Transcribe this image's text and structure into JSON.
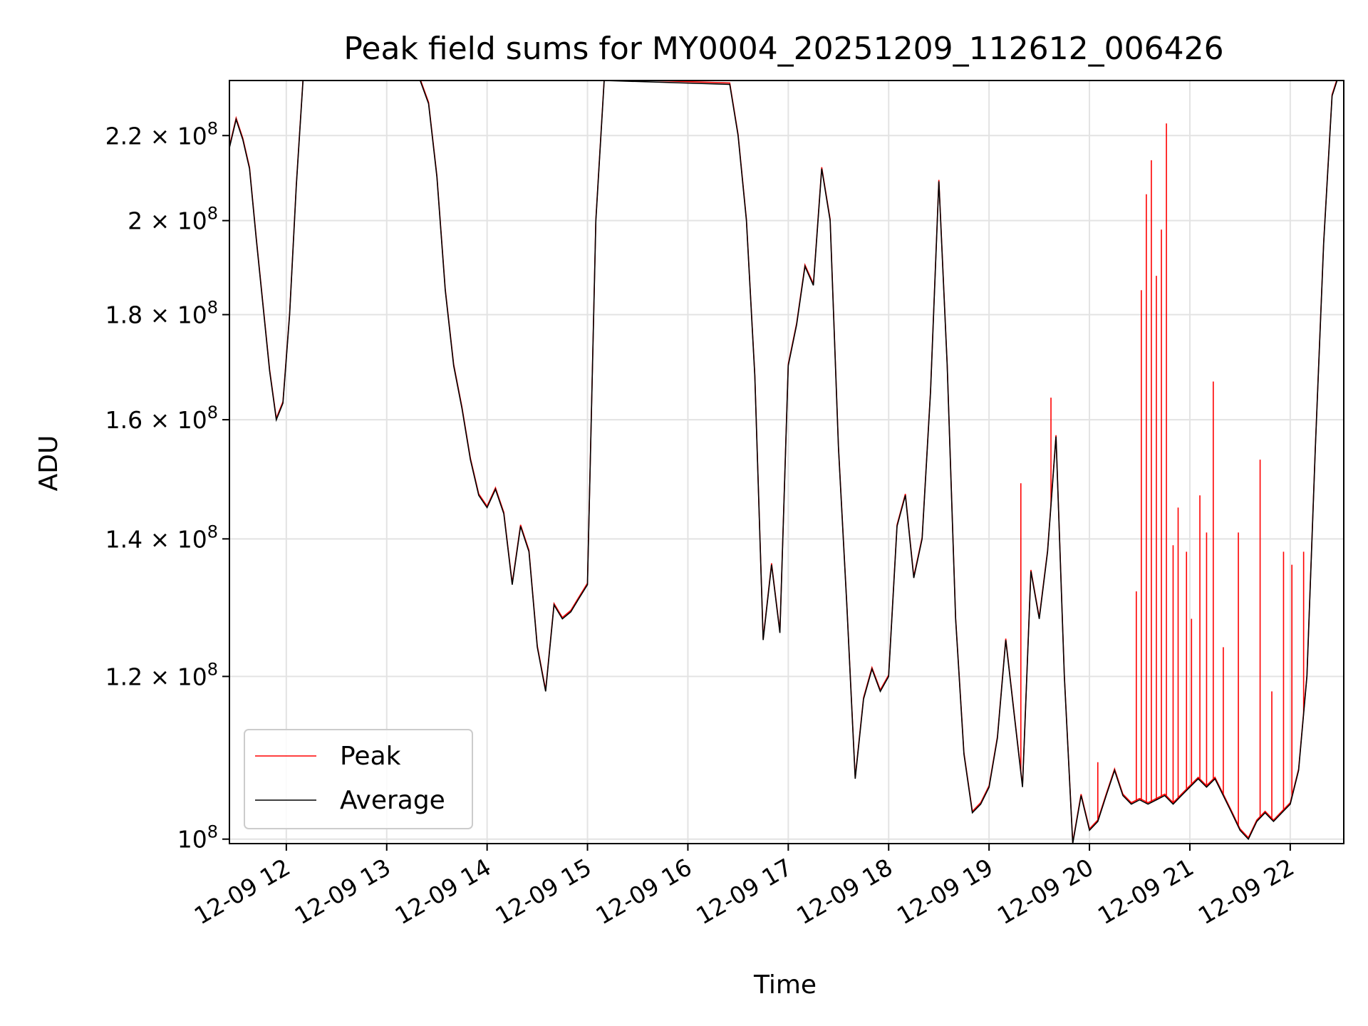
{
  "chart_data": {
    "type": "line",
    "title": "Peak field sums for MY0004_20251209_112612_006426",
    "xlabel": "Time",
    "ylabel": "ADU",
    "yscale": "log",
    "grid": true,
    "legend_placement": "lower-left",
    "x_range": [
      "2025-12-09 11:26",
      "2025-12-09 22:32"
    ],
    "ylim": [
      99500000,
      234000000
    ],
    "x_ticks": [
      {
        "t": "2025-12-09 12:00",
        "label": "12-09 12"
      },
      {
        "t": "2025-12-09 13:00",
        "label": "12-09 13"
      },
      {
        "t": "2025-12-09 14:00",
        "label": "12-09 14"
      },
      {
        "t": "2025-12-09 15:00",
        "label": "12-09 15"
      },
      {
        "t": "2025-12-09 16:00",
        "label": "12-09 16"
      },
      {
        "t": "2025-12-09 17:00",
        "label": "12-09 17"
      },
      {
        "t": "2025-12-09 18:00",
        "label": "12-09 18"
      },
      {
        "t": "2025-12-09 19:00",
        "label": "12-09 19"
      },
      {
        "t": "2025-12-09 20:00",
        "label": "12-09 20"
      },
      {
        "t": "2025-12-09 21:00",
        "label": "12-09 21"
      },
      {
        "t": "2025-12-09 22:00",
        "label": "12-09 22"
      }
    ],
    "y_ticks": [
      {
        "v": 100000000,
        "mant": "10",
        "exp": "8"
      },
      {
        "v": 120000000,
        "mant": "1.2 × 10",
        "exp": "8"
      },
      {
        "v": 140000000,
        "mant": "1.4 × 10",
        "exp": "8"
      },
      {
        "v": 160000000,
        "mant": "1.6 × 10",
        "exp": "8"
      },
      {
        "v": 180000000,
        "mant": "1.8 × 10",
        "exp": "8"
      },
      {
        "v": 200000000,
        "mant": "2 × 10",
        "exp": "8"
      },
      {
        "v": 220000000,
        "mant": "2.2 × 10",
        "exp": "8"
      }
    ],
    "series": [
      {
        "name": "Average",
        "color": "#000000",
        "points": [
          [
            "2025-12-09 11:26",
            217000000.0
          ],
          [
            "2025-12-09 11:30",
            224000000.0
          ],
          [
            "2025-12-09 11:34",
            219000000.0
          ],
          [
            "2025-12-09 11:38",
            212000000.0
          ],
          [
            "2025-12-09 11:42",
            196000000.0
          ],
          [
            "2025-12-09 11:46",
            182000000.0
          ],
          [
            "2025-12-09 11:50",
            169000000.0
          ],
          [
            "2025-12-09 11:54",
            160000000.0
          ],
          [
            "2025-12-09 11:58",
            163000000.0
          ],
          [
            "2025-12-09 12:02",
            180000000.0
          ],
          [
            "2025-12-09 12:06",
            208000000.0
          ],
          [
            "2025-12-09 12:10",
            234000000.0
          ],
          [
            "2025-12-09 13:20",
            234000000.0
          ],
          [
            "2025-12-09 13:25",
            228000000.0
          ],
          [
            "2025-12-09 13:30",
            210000000.0
          ],
          [
            "2025-12-09 13:35",
            185000000.0
          ],
          [
            "2025-12-09 13:40",
            170000000.0
          ],
          [
            "2025-12-09 13:45",
            162000000.0
          ],
          [
            "2025-12-09 13:50",
            153000000.0
          ],
          [
            "2025-12-09 13:55",
            147000000.0
          ],
          [
            "2025-12-09 14:00",
            145000000.0
          ],
          [
            "2025-12-09 14:05",
            148000000.0
          ],
          [
            "2025-12-09 14:10",
            144000000.0
          ],
          [
            "2025-12-09 14:15",
            133000000.0
          ],
          [
            "2025-12-09 14:20",
            142000000.0
          ],
          [
            "2025-12-09 14:25",
            138000000.0
          ],
          [
            "2025-12-09 14:30",
            124000000.0
          ],
          [
            "2025-12-09 14:35",
            118000000.0
          ],
          [
            "2025-12-09 14:40",
            130000000.0
          ],
          [
            "2025-12-09 14:45",
            128000000.0
          ],
          [
            "2025-12-09 14:50",
            129000000.0
          ],
          [
            "2025-12-09 14:55",
            131000000.0
          ],
          [
            "2025-12-09 15:00",
            133000000.0
          ],
          [
            "2025-12-09 15:05",
            200000000.0
          ],
          [
            "2025-12-09 15:10",
            234000000.0
          ],
          [
            "2025-12-09 16:25",
            233000000.0
          ],
          [
            "2025-12-09 16:30",
            220000000.0
          ],
          [
            "2025-12-09 16:35",
            200000000.0
          ],
          [
            "2025-12-09 16:40",
            168000000.0
          ],
          [
            "2025-12-09 16:45",
            125000000.0
          ],
          [
            "2025-12-09 16:50",
            136000000.0
          ],
          [
            "2025-12-09 16:55",
            126000000.0
          ],
          [
            "2025-12-09 17:00",
            170000000.0
          ],
          [
            "2025-12-09 17:05",
            178000000.0
          ],
          [
            "2025-12-09 17:10",
            190000000.0
          ],
          [
            "2025-12-09 17:15",
            186000000.0
          ],
          [
            "2025-12-09 17:20",
            212000000.0
          ],
          [
            "2025-12-09 17:25",
            200000000.0
          ],
          [
            "2025-12-09 17:30",
            155000000.0
          ],
          [
            "2025-12-09 17:35",
            130000000.0
          ],
          [
            "2025-12-09 17:40",
            107000000.0
          ],
          [
            "2025-12-09 17:45",
            117000000.0
          ],
          [
            "2025-12-09 17:50",
            121000000.0
          ],
          [
            "2025-12-09 17:55",
            118000000.0
          ],
          [
            "2025-12-09 18:00",
            120000000.0
          ],
          [
            "2025-12-09 18:05",
            142000000.0
          ],
          [
            "2025-12-09 18:10",
            147000000.0
          ],
          [
            "2025-12-09 18:15",
            134000000.0
          ],
          [
            "2025-12-09 18:20",
            140000000.0
          ],
          [
            "2025-12-09 18:25",
            165000000.0
          ],
          [
            "2025-12-09 18:30",
            209000000.0
          ],
          [
            "2025-12-09 18:35",
            170000000.0
          ],
          [
            "2025-12-09 18:40",
            128000000.0
          ],
          [
            "2025-12-09 18:45",
            110000000.0
          ],
          [
            "2025-12-09 18:50",
            103000000.0
          ],
          [
            "2025-12-09 18:55",
            104000000.0
          ],
          [
            "2025-12-09 19:00",
            106000000.0
          ],
          [
            "2025-12-09 19:05",
            112000000.0
          ],
          [
            "2025-12-09 19:10",
            125000000.0
          ],
          [
            "2025-12-09 19:15",
            115000000.0
          ],
          [
            "2025-12-09 19:20",
            106000000.0
          ],
          [
            "2025-12-09 19:25",
            135000000.0
          ],
          [
            "2025-12-09 19:30",
            128000000.0
          ],
          [
            "2025-12-09 19:35",
            138000000.0
          ],
          [
            "2025-12-09 19:40",
            157000000.0
          ],
          [
            "2025-12-09 19:45",
            120000000.0
          ],
          [
            "2025-12-09 19:50",
            98000000.0
          ],
          [
            "2025-12-09 19:55",
            105000000.0
          ],
          [
            "2025-12-09 20:00",
            101000000.0
          ],
          [
            "2025-12-09 20:05",
            102000000.0
          ],
          [
            "2025-12-09 20:10",
            105000000.0
          ],
          [
            "2025-12-09 20:15",
            108000000.0
          ],
          [
            "2025-12-09 20:20",
            105000000.0
          ],
          [
            "2025-12-09 20:25",
            104000000.0
          ],
          [
            "2025-12-09 20:30",
            104500000.0
          ],
          [
            "2025-12-09 20:35",
            104000000.0
          ],
          [
            "2025-12-09 20:40",
            104500000.0
          ],
          [
            "2025-12-09 20:45",
            105000000.0
          ],
          [
            "2025-12-09 20:50",
            104000000.0
          ],
          [
            "2025-12-09 20:55",
            105000000.0
          ],
          [
            "2025-12-09 21:00",
            106000000.0
          ],
          [
            "2025-12-09 21:05",
            107000000.0
          ],
          [
            "2025-12-09 21:10",
            106000000.0
          ],
          [
            "2025-12-09 21:15",
            107000000.0
          ],
          [
            "2025-12-09 21:20",
            105000000.0
          ],
          [
            "2025-12-09 21:25",
            103000000.0
          ],
          [
            "2025-12-09 21:30",
            101000000.0
          ],
          [
            "2025-12-09 21:35",
            100000000.0
          ],
          [
            "2025-12-09 21:40",
            102000000.0
          ],
          [
            "2025-12-09 21:45",
            103000000.0
          ],
          [
            "2025-12-09 21:50",
            102000000.0
          ],
          [
            "2025-12-09 21:55",
            103000000.0
          ],
          [
            "2025-12-09 22:00",
            104000000.0
          ],
          [
            "2025-12-09 22:05",
            108000000.0
          ],
          [
            "2025-12-09 22:10",
            120000000.0
          ],
          [
            "2025-12-09 22:15",
            155000000.0
          ],
          [
            "2025-12-09 22:20",
            195000000.0
          ],
          [
            "2025-12-09 22:25",
            230000000.0
          ],
          [
            "2025-12-09 22:28",
            234000000.0
          ]
        ]
      },
      {
        "name": "Peak",
        "color": "#ff0000",
        "spikes": [
          [
            "2025-12-09 19:19",
            149000000.0
          ],
          [
            "2025-12-09 19:37",
            164000000.0
          ],
          [
            "2025-12-09 20:05",
            109000000.0
          ],
          [
            "2025-12-09 20:17",
            107000000.0
          ],
          [
            "2025-12-09 20:28",
            132000000.0
          ],
          [
            "2025-12-09 20:31",
            185000000.0
          ],
          [
            "2025-12-09 20:34",
            206000000.0
          ],
          [
            "2025-12-09 20:37",
            214000000.0
          ],
          [
            "2025-12-09 20:40",
            188000000.0
          ],
          [
            "2025-12-09 20:43",
            198000000.0
          ],
          [
            "2025-12-09 20:46",
            223000000.0
          ],
          [
            "2025-12-09 20:50",
            139000000.0
          ],
          [
            "2025-12-09 20:53",
            145000000.0
          ],
          [
            "2025-12-09 20:58",
            138000000.0
          ],
          [
            "2025-12-09 21:01",
            128000000.0
          ],
          [
            "2025-12-09 21:06",
            147000000.0
          ],
          [
            "2025-12-09 21:10",
            141000000.0
          ],
          [
            "2025-12-09 21:14",
            167000000.0
          ],
          [
            "2025-12-09 21:20",
            124000000.0
          ],
          [
            "2025-12-09 21:29",
            141000000.0
          ],
          [
            "2025-12-09 21:42",
            153000000.0
          ],
          [
            "2025-12-09 21:49",
            118000000.0
          ],
          [
            "2025-12-09 21:56",
            138000000.0
          ],
          [
            "2025-12-09 22:01",
            136000000.0
          ],
          [
            "2025-12-09 22:08",
            138000000.0
          ]
        ]
      }
    ]
  }
}
